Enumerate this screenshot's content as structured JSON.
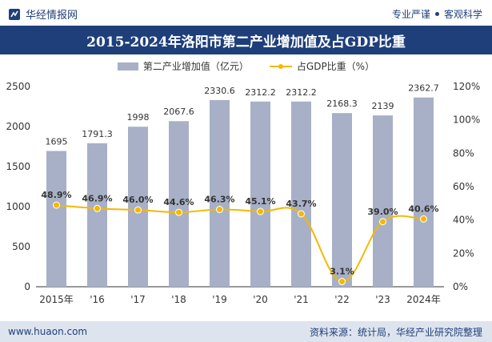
{
  "header": {
    "brand": "华经情报网",
    "tagline_left": "专业严谨",
    "tagline_right": "客观科学"
  },
  "title": "2015-2024年洛阳市第二产业增加值及占GDP比重",
  "legend": {
    "bar_label": "第二产业增加值（亿元）",
    "line_label": "占GDP比重（%）"
  },
  "footer": {
    "url": "www.huaon.com",
    "source": "资料来源：统计局，华经产业研究院整理"
  },
  "colors": {
    "bar": "#a7b0c7",
    "line": "#f5b800",
    "header_bg": "#1f3f7a",
    "footer_bg": "#dde4ee"
  },
  "chart_data": {
    "type": "bar",
    "categories": [
      "2015年",
      "'16",
      "'17",
      "'18",
      "'19",
      "'20",
      "'21",
      "'22",
      "'23",
      "2024年"
    ],
    "series": [
      {
        "name": "第二产业增加值（亿元）",
        "type": "bar",
        "axis": "left",
        "values": [
          1695,
          1791.3,
          1998,
          2067.6,
          2330.6,
          2312.2,
          2312.2,
          2168.3,
          2139,
          2362.7
        ],
        "labels": [
          "1695",
          "1791.3",
          "1998",
          "2067.6",
          "2330.6",
          "2312.2",
          "2312.2",
          "2168.3",
          "2139",
          "2362.7"
        ]
      },
      {
        "name": "占GDP比重（%）",
        "type": "line",
        "axis": "right",
        "values": [
          48.9,
          46.9,
          46.0,
          44.6,
          46.3,
          45.1,
          43.7,
          3.1,
          39.0,
          40.6
        ],
        "labels": [
          "48.9%",
          "46.9%",
          "46.0%",
          "44.6%",
          "46.3%",
          "45.1%",
          "43.7%",
          "3.1%",
          "39.0%",
          "40.6%"
        ]
      }
    ],
    "y_left": {
      "range": [
        0,
        2500
      ],
      "ticks": [
        "0",
        "500",
        "1000",
        "1500",
        "2000",
        "2500"
      ],
      "tick_values": [
        0,
        500,
        1000,
        1500,
        2000,
        2500
      ]
    },
    "y_right": {
      "range": [
        0,
        120
      ],
      "ticks": [
        "0%",
        "20%",
        "40%",
        "60%",
        "80%",
        "100%",
        "120%"
      ],
      "tick_values": [
        0,
        20,
        40,
        60,
        80,
        100,
        120
      ]
    },
    "grid": false,
    "legend_position": "top-center"
  }
}
